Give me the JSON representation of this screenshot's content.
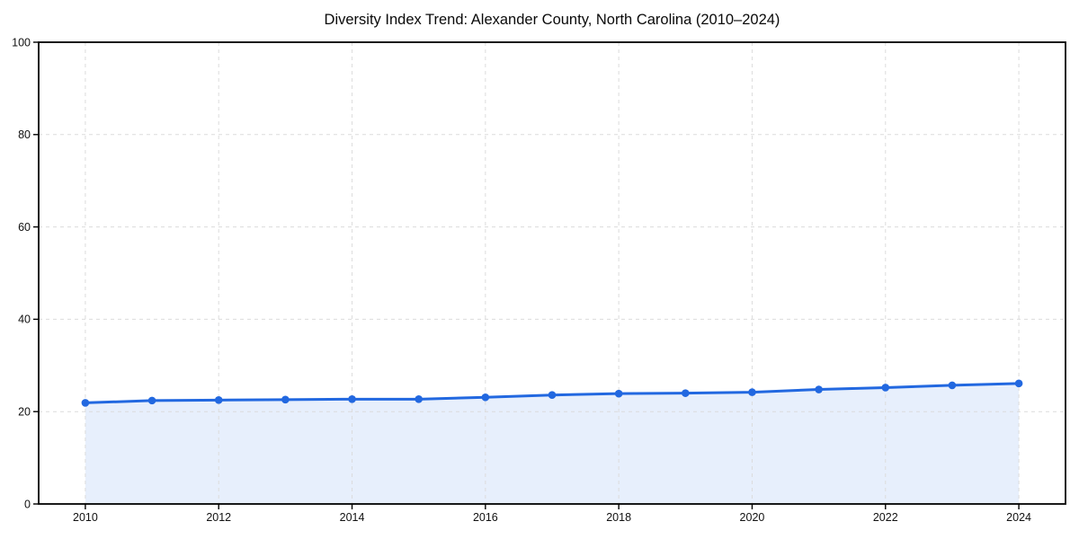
{
  "title": "Diversity Index Trend: Alexander County, North Carolina (2010–2024)",
  "chart_data": {
    "type": "line",
    "title": "Diversity Index Trend: Alexander County, North Carolina (2010–2024)",
    "x": [
      2010,
      2011,
      2012,
      2013,
      2014,
      2015,
      2016,
      2017,
      2018,
      2019,
      2020,
      2021,
      2022,
      2023,
      2024
    ],
    "series": [
      {
        "name": "Diversity Index",
        "values": [
          21.9,
          22.4,
          22.5,
          22.6,
          22.7,
          22.7,
          23.1,
          23.6,
          23.9,
          24.0,
          24.2,
          24.8,
          25.2,
          25.7,
          26.1
        ]
      }
    ],
    "xlabel": "",
    "ylabel": "",
    "xlim": [
      2009.3,
      2024.7
    ],
    "ylim": [
      0,
      100
    ],
    "yticks": [
      0,
      20,
      40,
      60,
      80,
      100
    ],
    "xticks": [
      2010,
      2012,
      2014,
      2016,
      2018,
      2020,
      2022,
      2024
    ],
    "grid": true,
    "grid_style": "dashed",
    "legend_position": "none",
    "area_fill": true,
    "marker": "circle",
    "colors": {
      "line": "#2268e0",
      "marker": "#2268e0",
      "area": "#e7effc",
      "grid": "#dcdcdc",
      "axis": "#000000",
      "text": "#111111",
      "background": "#ffffff"
    }
  }
}
